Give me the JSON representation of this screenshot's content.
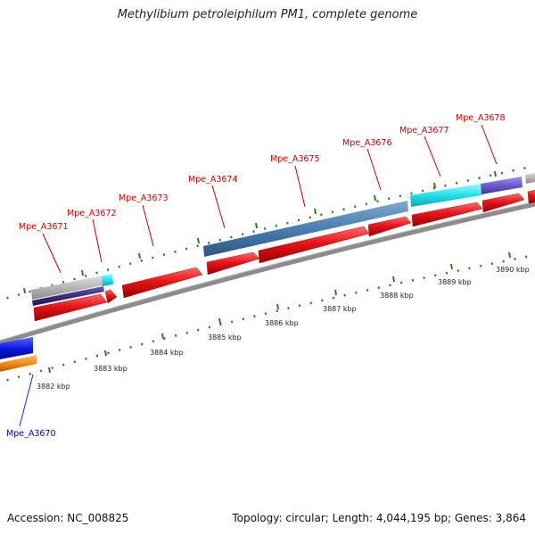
{
  "title": "Methylibium petroleiphilum PM1, complete genome",
  "footer": {
    "accession": "Accession: NC_008825",
    "summary": "Topology: circular; Length: 4,044,195 bp; Genes: 3,864"
  },
  "gene_labels": [
    {
      "id": "Mpe_A3670",
      "color": "#0000cc"
    },
    {
      "id": "Mpe_A3671",
      "color": "#cc0000"
    },
    {
      "id": "Mpe_A3672",
      "color": "#cc0000"
    },
    {
      "id": "Mpe_A3673",
      "color": "#cc0000"
    },
    {
      "id": "Mpe_A3674",
      "color": "#cc0000"
    },
    {
      "id": "Mpe_A3675",
      "color": "#cc0000"
    },
    {
      "id": "Mpe_A3676",
      "color": "#cc0000"
    },
    {
      "id": "Mpe_A3677",
      "color": "#cc0000"
    },
    {
      "id": "Mpe_A3678",
      "color": "#cc0000"
    }
  ],
  "scale_labels": [
    "3882 kbp",
    "3883 kbp",
    "3884 kbp",
    "3885 kbp",
    "3886 kbp",
    "3887 kbp",
    "3888 kbp",
    "3889 kbp",
    "3890 kbp"
  ],
  "colors": {
    "cds_forward": "#e8141a",
    "backbone": "#8c8c8c",
    "tick": "#2e7d1e",
    "feature_steelblue": "#4a7fb0",
    "feature_cyan": "#21e0ea",
    "feature_purple": "#6a5acd",
    "feature_gray": "#b5b5b5",
    "feature_navy": "#3a2d7a",
    "feature_blue": "#0a18e0",
    "feature_orange": "#f08a10"
  }
}
